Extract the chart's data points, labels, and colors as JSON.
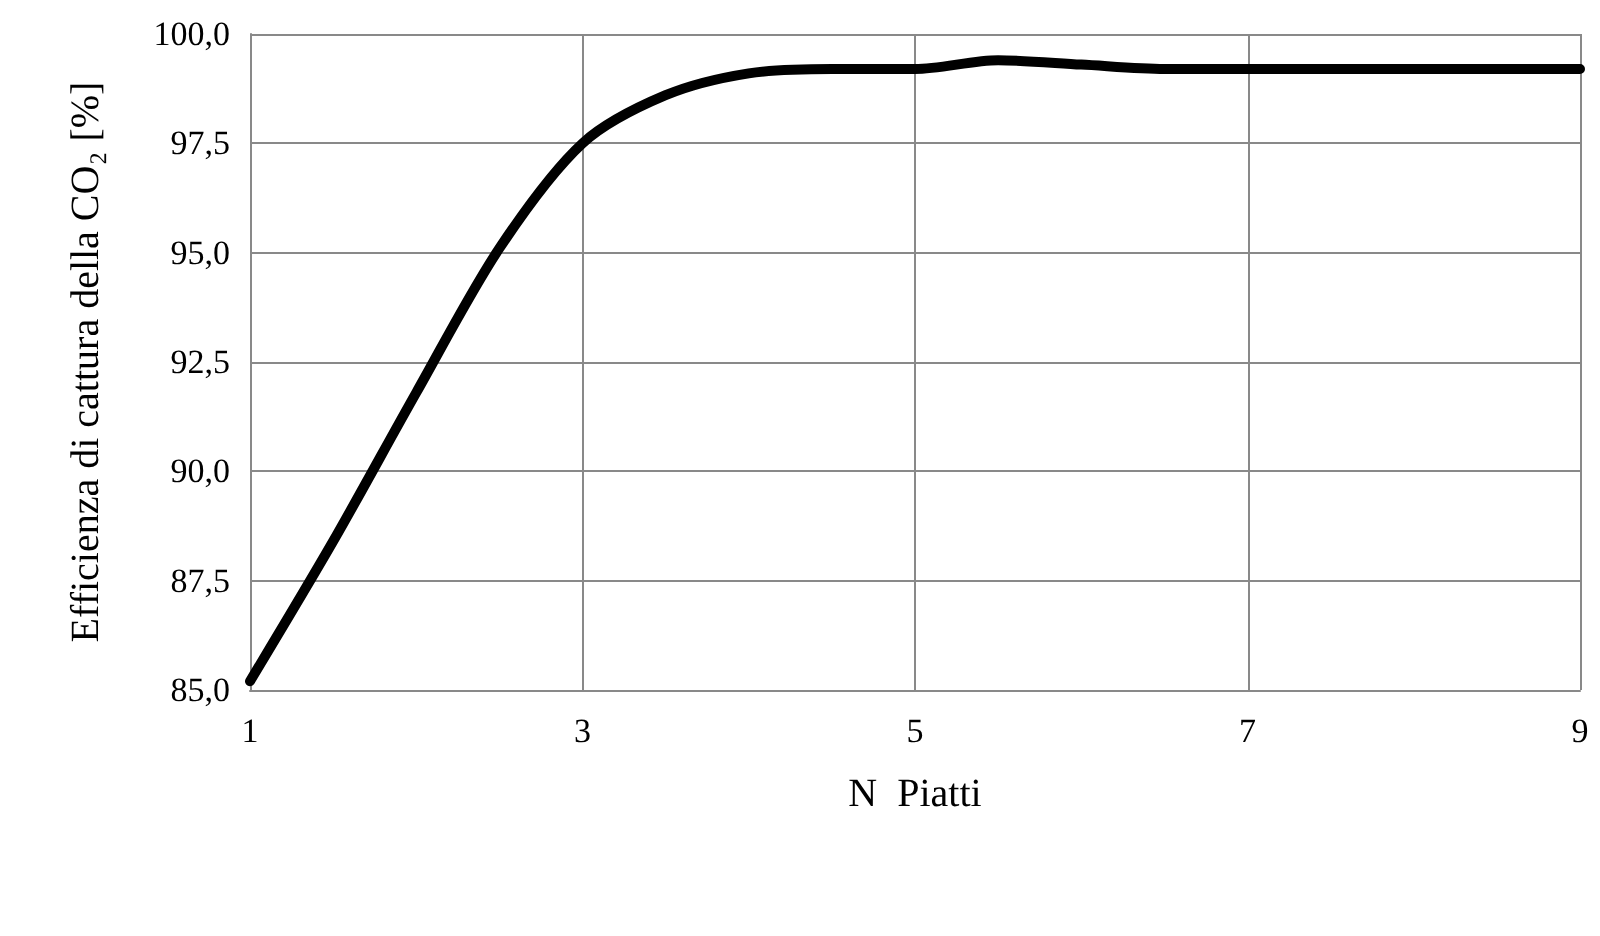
{
  "chart_data": {
    "type": "line",
    "xlabel": "N  Piatti",
    "ylabel": "Efficienza di cattura della CO₂ [%]",
    "x": [
      1,
      1.5,
      2,
      2.5,
      3,
      3.5,
      4,
      4.5,
      5,
      5.5,
      6,
      6.5,
      7,
      8,
      9
    ],
    "series": [
      {
        "color": "#000000",
        "values": [
          85.2,
          88.4,
          91.8,
          95.1,
          97.5,
          98.6,
          99.1,
          99.2,
          99.2,
          99.4,
          99.3,
          99.2,
          99.2,
          99.2,
          99.2
        ]
      }
    ],
    "xlim": [
      1,
      9
    ],
    "xticks": [
      1,
      3,
      5,
      7,
      9
    ],
    "ylim": [
      85,
      100
    ],
    "yticks": [
      {
        "value": 85,
        "label": "85,0"
      },
      {
        "value": 87.5,
        "label": "87,5"
      },
      {
        "value": 90,
        "label": "90,0"
      },
      {
        "value": 92.5,
        "label": "92,5"
      },
      {
        "value": 95,
        "label": "95,0"
      },
      {
        "value": 97.5,
        "label": "97,5"
      },
      {
        "value": 100,
        "label": "100,0"
      }
    ],
    "grid": true,
    "marker": "none",
    "line_style": "solid"
  }
}
